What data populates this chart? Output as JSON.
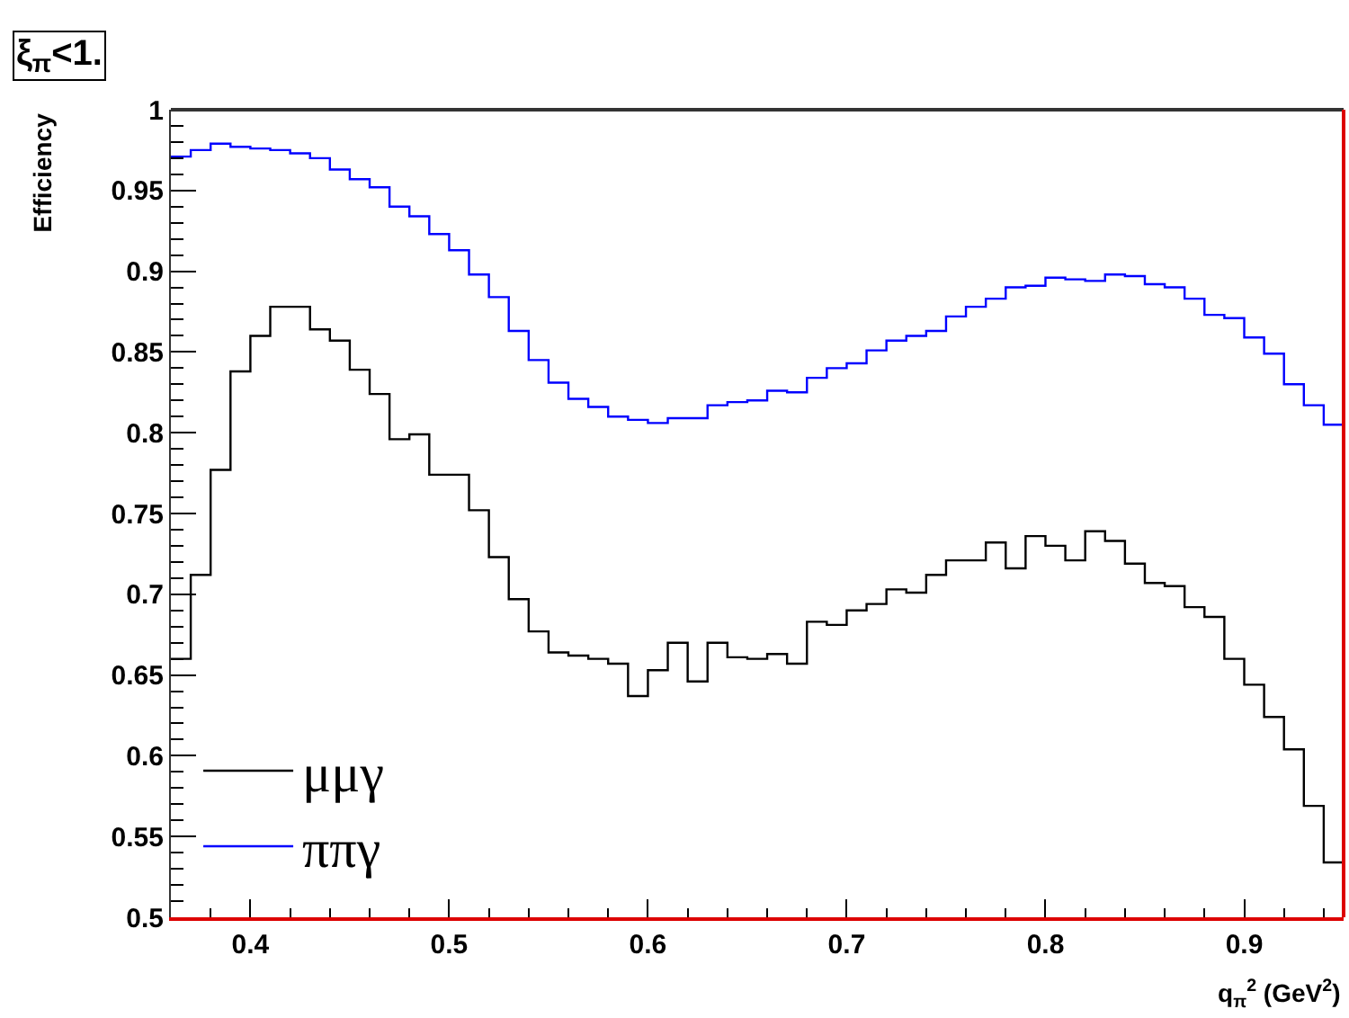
{
  "chart_data": {
    "type": "histogram",
    "title": "ξ$_{π}$<1.",
    "xlabel": "q$_{π}$$^{2}$ (GeV$^{2}$)",
    "ylabel": "Efficiency",
    "bins": [
      0.36,
      0.37,
      0.38,
      0.39,
      0.4,
      0.41,
      0.42,
      0.43,
      0.44,
      0.45,
      0.46,
      0.47,
      0.48,
      0.49,
      0.5,
      0.51,
      0.52,
      0.53,
      0.54,
      0.55,
      0.56,
      0.57,
      0.58,
      0.59,
      0.6,
      0.61,
      0.62,
      0.63,
      0.64,
      0.65,
      0.66,
      0.67,
      0.68,
      0.69,
      0.7,
      0.71,
      0.72,
      0.73,
      0.74,
      0.75,
      0.76,
      0.77,
      0.78,
      0.79,
      0.8,
      0.81,
      0.82,
      0.83,
      0.84,
      0.85,
      0.86,
      0.87,
      0.88,
      0.89,
      0.9,
      0.91,
      0.92,
      0.93,
      0.94,
      0.95
    ],
    "series": [
      {
        "name": "μμγ",
        "color": "#000000",
        "values": [
          0.66,
          0.712,
          0.777,
          0.838,
          0.86,
          0.878,
          0.878,
          0.864,
          0.857,
          0.839,
          0.824,
          0.796,
          0.799,
          0.774,
          0.774,
          0.752,
          0.723,
          0.697,
          0.677,
          0.664,
          0.662,
          0.66,
          0.657,
          0.637,
          0.653,
          0.67,
          0.646,
          0.67,
          0.661,
          0.66,
          0.663,
          0.657,
          0.683,
          0.681,
          0.69,
          0.694,
          0.703,
          0.701,
          0.712,
          0.721,
          0.721,
          0.732,
          0.716,
          0.736,
          0.73,
          0.721,
          0.739,
          0.733,
          0.719,
          0.707,
          0.705,
          0.692,
          0.686,
          0.66,
          0.644,
          0.624,
          0.604,
          0.569,
          0.534
        ]
      },
      {
        "name": "ππγ",
        "color": "#0000ff",
        "values": [
          0.971,
          0.975,
          0.979,
          0.977,
          0.976,
          0.975,
          0.973,
          0.97,
          0.963,
          0.957,
          0.952,
          0.94,
          0.934,
          0.923,
          0.913,
          0.898,
          0.884,
          0.863,
          0.845,
          0.831,
          0.821,
          0.816,
          0.81,
          0.808,
          0.806,
          0.809,
          0.809,
          0.817,
          0.819,
          0.82,
          0.826,
          0.825,
          0.834,
          0.84,
          0.843,
          0.851,
          0.857,
          0.86,
          0.863,
          0.872,
          0.878,
          0.883,
          0.89,
          0.891,
          0.896,
          0.895,
          0.894,
          0.898,
          0.897,
          0.892,
          0.89,
          0.883,
          0.873,
          0.871,
          0.859,
          0.849,
          0.83,
          0.817,
          0.805
        ]
      }
    ],
    "xlim": [
      0.36,
      0.95
    ],
    "ylim": [
      0.5,
      1
    ],
    "xticks": [
      0.4,
      0.5,
      0.6,
      0.7,
      0.8,
      0.9
    ],
    "yticks": [
      0.5,
      0.55,
      0.6,
      0.65,
      0.7,
      0.75,
      0.8,
      0.85,
      0.9,
      0.95,
      1
    ],
    "legend": "bottom left"
  }
}
